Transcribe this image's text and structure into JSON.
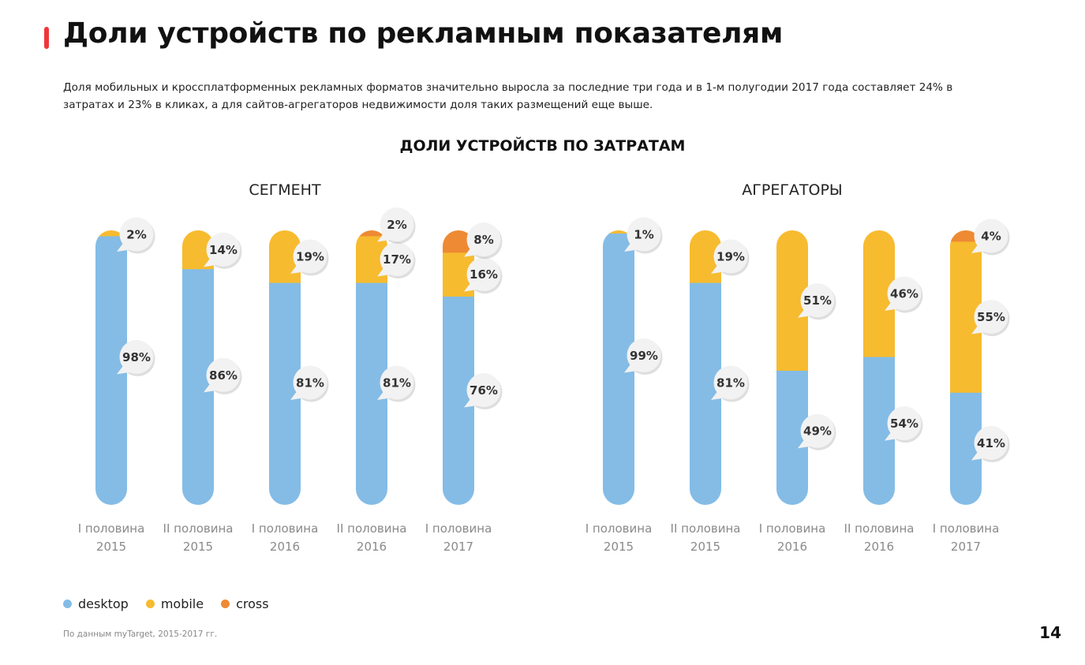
{
  "page": {
    "title": "Доли устройств по рекламным показателям",
    "subtitle": "Доля мобильных и кроссплатформенных рекламных форматов значительно выросла за последние три года и в 1-м полугодии 2017 года составляет 24% в затратах и 23% в кликах, а для сайтов-агрегаторов недвижимости доля таких размещений еще выше.",
    "source": "По данным myTarget, 2015-2017 гг.",
    "page_number": "14"
  },
  "colors": {
    "accent": "#f0353a",
    "desktop": "#84bce6",
    "mobile": "#f7bb2f",
    "cross": "#ee8a33",
    "axis_label": "#8a8a8a",
    "bubble_text": "#333333"
  },
  "legend": [
    {
      "name": "desktop",
      "color_key": "desktop"
    },
    {
      "name": "mobile",
      "color_key": "mobile"
    },
    {
      "name": "cross",
      "color_key": "cross"
    }
  ],
  "chart_data": [
    {
      "type": "bar",
      "stacked": true,
      "title": "ДОЛИ УСТРОЙСТВ ПО ЗАТРАТАМ",
      "subtitle": "СЕГМЕНТ",
      "unit": "%",
      "categories": [
        [
          "I половина",
          "2015"
        ],
        [
          "II половина",
          "2015"
        ],
        [
          "I половина",
          "2016"
        ],
        [
          "II половина",
          "2016"
        ],
        [
          "I половина",
          "2017"
        ]
      ],
      "series": [
        {
          "name": "desktop",
          "values": [
            98,
            86,
            81,
            81,
            76
          ]
        },
        {
          "name": "mobile",
          "values": [
            2,
            14,
            19,
            17,
            16
          ]
        },
        {
          "name": "cross",
          "values": [
            0,
            0,
            0,
            2,
            8
          ]
        }
      ],
      "ylim": [
        0,
        100
      ],
      "grid": false,
      "legend_position": "bottom-left"
    },
    {
      "type": "bar",
      "stacked": true,
      "title": "ДОЛИ УСТРОЙСТВ ПО ЗАТРАТАМ",
      "subtitle": "АГРЕГАТОРЫ",
      "unit": "%",
      "categories": [
        [
          "I половина",
          "2015"
        ],
        [
          "II половина",
          "2015"
        ],
        [
          "I половина",
          "2016"
        ],
        [
          "II половина",
          "2016"
        ],
        [
          "I половина",
          "2017"
        ]
      ],
      "series": [
        {
          "name": "desktop",
          "values": [
            99,
            81,
            49,
            54,
            41
          ]
        },
        {
          "name": "mobile",
          "values": [
            1,
            19,
            51,
            46,
            55
          ]
        },
        {
          "name": "cross",
          "values": [
            0,
            0,
            0,
            0,
            4
          ]
        }
      ],
      "ylim": [
        0,
        100
      ],
      "grid": false,
      "legend_position": "bottom-left"
    }
  ]
}
